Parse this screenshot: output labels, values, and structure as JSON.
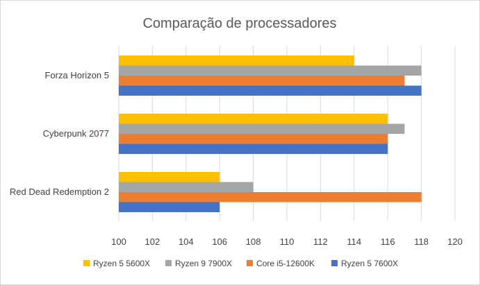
{
  "chart_data": {
    "type": "bar",
    "orientation": "horizontal",
    "title": "Comparação de processadores",
    "categories": [
      "Forza Horizon 5",
      "Cyberpunk 2077",
      "Red Dead Redemption 2"
    ],
    "series": [
      {
        "name": "Ryzen 5 5600X",
        "color": "#FFC000",
        "values": [
          114,
          116,
          106
        ]
      },
      {
        "name": "Ryzen 9 7900X",
        "color": "#A5A5A5",
        "values": [
          118,
          117,
          108
        ]
      },
      {
        "name": "Core i5-12600K",
        "color": "#ED7D31",
        "values": [
          117,
          116,
          118
        ]
      },
      {
        "name": "Ryzen 5 7600X",
        "color": "#4472C4",
        "values": [
          118,
          116,
          106
        ]
      }
    ],
    "xlim": [
      100,
      120
    ],
    "xticks": [
      "100",
      "102",
      "104",
      "106",
      "108",
      "110",
      "112",
      "114",
      "116",
      "118",
      "120"
    ],
    "grid": true,
    "legend_position": "bottom"
  }
}
